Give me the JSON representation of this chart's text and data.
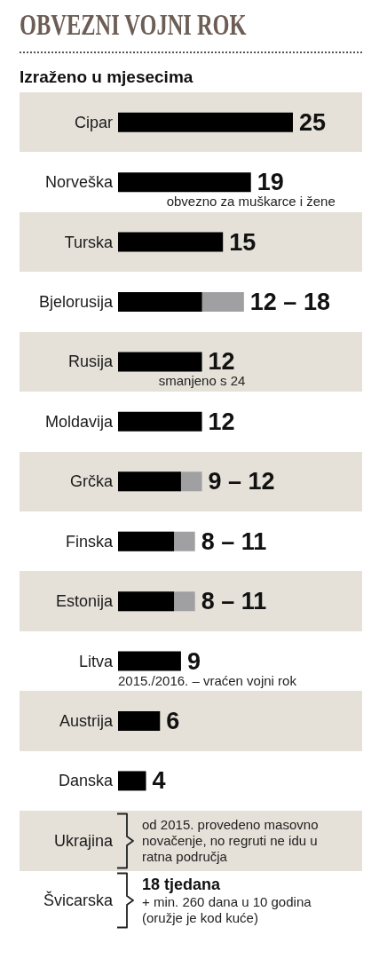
{
  "chart_data": {
    "type": "bar",
    "orientation": "horizontal",
    "title": "OBVEZNI VOJNI ROK",
    "subtitle": "Izraženo u mjesecima",
    "categories": [
      "Cipar",
      "Norveška",
      "Turska",
      "Bjelorusija",
      "Rusija",
      "Moldavija",
      "Grčka",
      "Finska",
      "Estonija",
      "Litva",
      "Austrija",
      "Danska",
      "Ukrajina",
      "Švicarska"
    ],
    "series": [
      {
        "color": "#000000",
        "values": [
          25,
          19,
          15,
          12,
          12,
          12,
          9,
          8,
          8,
          9,
          6,
          4,
          null,
          null
        ],
        "value_labels": [
          "25",
          "19",
          "15",
          "12 –",
          "12",
          "12",
          "9 –",
          "8 –",
          "8 –",
          "9",
          "6",
          "4",
          null,
          null
        ]
      },
      {
        "color": "#a0a0a2",
        "values": [
          null,
          null,
          null,
          18,
          null,
          null,
          12,
          11,
          11,
          null,
          null,
          null,
          null,
          null
        ],
        "value_labels": [
          null,
          null,
          null,
          "18",
          null,
          null,
          "12",
          "11",
          "11",
          null,
          null,
          null,
          null,
          null
        ]
      }
    ],
    "annotations": [
      {
        "text": "obvezno za muškarce i žene",
        "x": 19,
        "y": "Norveška"
      },
      {
        "text": "smanjeno s 24",
        "x": 12,
        "y": "Rusija"
      },
      {
        "text": "2015./2016. – vraćen vojni rok",
        "x": 9,
        "y": "Litva"
      },
      "od 2015. provedeno masovno novačenje, no regruti ne idu u ratna područja",
      "18 tjedana",
      "+ min. 260 dana u 10 godina (oružje je kod kuće)"
    ],
    "tick_labels": "y"
  }
}
